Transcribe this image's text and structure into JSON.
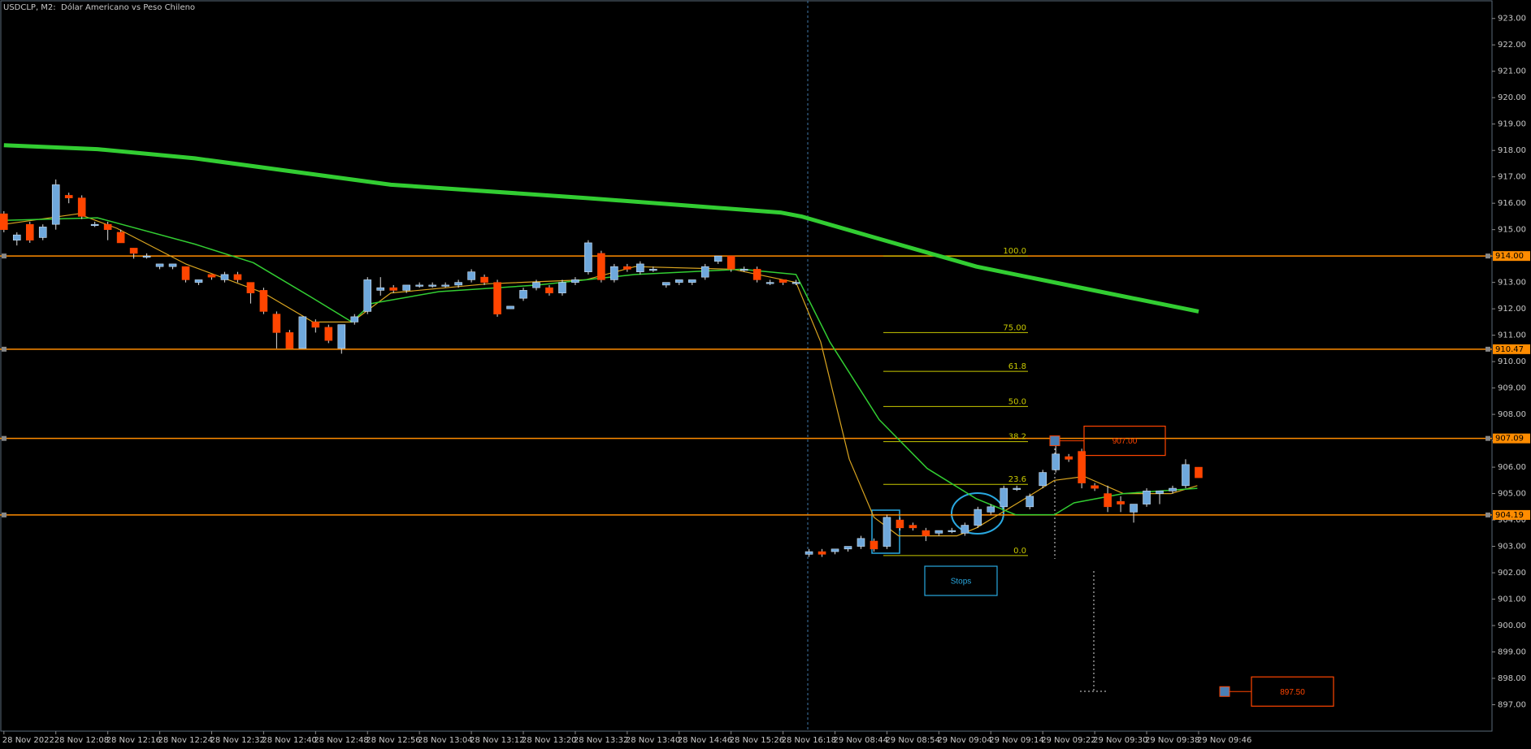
{
  "chart_data": {
    "type": "candlestick",
    "title": "USDCLP, M2:  Dólar Americano vs Peso Chileno",
    "up_color": "#6fa8dc",
    "down_color": "#ff4500",
    "wick_color": "#e0e0e0",
    "categories": [
      "28 Nov 2022",
      null,
      null,
      null,
      "28 Nov 12:08",
      null,
      null,
      null,
      "28 Nov 12:16",
      null,
      null,
      null,
      "28 Nov 12:24",
      null,
      null,
      null,
      "28 Nov 12:32",
      null,
      null,
      null,
      "28 Nov 12:40",
      null,
      null,
      null,
      "28 Nov 12:48",
      null,
      null,
      null,
      "28 Nov 12:56",
      null,
      null,
      null,
      "28 Nov 13:04",
      null,
      null,
      null,
      "28 Nov 13:12",
      null,
      null,
      null,
      "28 Nov 13:20",
      null,
      null,
      null,
      "28 Nov 13:32",
      null,
      null,
      null,
      "28 Nov 13:40",
      null,
      null,
      null,
      "28 Nov 14:46",
      null,
      null,
      null,
      "28 Nov 15:26",
      null,
      null,
      null,
      "28 Nov 16:18",
      null,
      null,
      null,
      "29 Nov 08:44",
      null,
      null,
      null,
      "29 Nov 08:54",
      null,
      null,
      null,
      "29 Nov 09:04",
      null,
      null,
      null,
      "29 Nov 09:14",
      null,
      null,
      null,
      "29 Nov 09:22",
      null,
      null,
      null,
      "29 Nov 09:30",
      null,
      null,
      null,
      "29 Nov 09:38",
      null,
      null,
      null,
      "29 Nov 09:46"
    ],
    "open": [
      915.6,
      914.6,
      915.2,
      914.7,
      915.2,
      916.3,
      916.2,
      915.2,
      915.2,
      914.9,
      914.3,
      914.0,
      913.6,
      913.6,
      913.6,
      913.0,
      913.3,
      913.1,
      913.3,
      913.0,
      912.7,
      911.8,
      911.1,
      910.5,
      911.5,
      911.3,
      910.5,
      911.5,
      911.9,
      912.7,
      912.8,
      912.7,
      912.9,
      912.9,
      912.9,
      912.9,
      913.1,
      913.2,
      913.0,
      912.0,
      912.4,
      912.8,
      912.8,
      912.6,
      913.0,
      913.4,
      914.1,
      913.1,
      913.6,
      913.4,
      913.5,
      912.9,
      913.0,
      913.0,
      913.2,
      913.8,
      914.0,
      913.5,
      913.5,
      913.0,
      913.1,
      913.0,
      902.7,
      902.8,
      902.8,
      902.9,
      903.0,
      903.2,
      903.0,
      904.0,
      903.8,
      903.6,
      903.5,
      903.6,
      903.5,
      903.8,
      904.3,
      904.5,
      905.2,
      904.5,
      905.3,
      905.9,
      906.4,
      906.6,
      905.3,
      905.0,
      904.7,
      904.3,
      904.6,
      905.0,
      905.1,
      905.3,
      906.0
    ],
    "high": [
      915.7,
      914.9,
      915.3,
      915.2,
      916.9,
      916.4,
      916.3,
      915.3,
      915.3,
      915.0,
      914.3,
      914.1,
      913.7,
      913.7,
      913.6,
      913.1,
      913.3,
      913.4,
      913.4,
      913.0,
      912.8,
      911.9,
      911.2,
      911.7,
      911.6,
      911.4,
      911.4,
      911.8,
      913.2,
      913.2,
      912.9,
      912.9,
      913.0,
      913.0,
      913.0,
      913.1,
      913.5,
      913.3,
      913.1,
      912.1,
      912.8,
      913.1,
      912.9,
      913.1,
      913.2,
      914.6,
      914.2,
      913.7,
      913.7,
      913.8,
      913.6,
      913.0,
      913.1,
      913.1,
      913.7,
      914.0,
      914.0,
      913.6,
      913.6,
      913.1,
      913.1,
      913.1,
      902.9,
      902.9,
      902.9,
      903.0,
      903.4,
      903.3,
      904.2,
      904.1,
      903.9,
      903.7,
      903.6,
      903.7,
      903.9,
      904.5,
      904.6,
      905.3,
      905.3,
      905.0,
      905.9,
      906.9,
      906.5,
      906.7,
      905.4,
      905.3,
      904.9,
      904.6,
      905.2,
      905.1,
      905.3,
      906.3,
      906.0
    ],
    "low": [
      914.9,
      914.4,
      914.5,
      914.6,
      915.0,
      916.0,
      915.4,
      915.1,
      914.6,
      914.5,
      913.9,
      913.9,
      913.5,
      913.5,
      913.0,
      912.9,
      913.1,
      913.0,
      913.0,
      912.2,
      911.8,
      910.5,
      910.5,
      910.5,
      911.1,
      910.7,
      910.3,
      911.4,
      911.8,
      912.5,
      912.6,
      912.6,
      912.8,
      912.8,
      912.8,
      912.8,
      913.0,
      912.9,
      911.7,
      912.0,
      912.3,
      912.7,
      912.5,
      912.5,
      912.9,
      913.3,
      913.0,
      913.0,
      913.4,
      913.3,
      913.4,
      912.8,
      912.9,
      912.9,
      913.1,
      913.7,
      913.4,
      913.4,
      913.0,
      912.9,
      912.9,
      912.9,
      902.6,
      902.6,
      902.7,
      902.8,
      902.9,
      902.8,
      902.9,
      903.6,
      903.6,
      903.2,
      903.4,
      903.5,
      903.4,
      903.7,
      904.2,
      904.4,
      905.1,
      904.4,
      905.2,
      905.8,
      906.2,
      905.2,
      905.1,
      904.3,
      904.3,
      903.9,
      904.5,
      904.6,
      905.0,
      905.2,
      905.6
    ],
    "close": [
      915.0,
      914.8,
      914.6,
      915.1,
      916.7,
      916.2,
      915.5,
      915.2,
      915.0,
      914.5,
      914.1,
      914.0,
      913.7,
      913.7,
      913.1,
      913.1,
      913.2,
      913.3,
      913.1,
      912.6,
      911.9,
      911.1,
      910.5,
      911.7,
      911.3,
      910.8,
      911.4,
      911.7,
      913.1,
      912.8,
      912.7,
      912.9,
      912.9,
      912.9,
      912.9,
      913.0,
      913.4,
      913.0,
      911.8,
      912.1,
      912.7,
      913.0,
      912.6,
      913.0,
      913.1,
      914.5,
      913.1,
      913.6,
      913.5,
      913.7,
      913.5,
      913.0,
      913.1,
      913.1,
      913.6,
      914.0,
      913.5,
      913.5,
      913.1,
      913.0,
      913.0,
      913.0,
      902.8,
      902.7,
      902.9,
      903.0,
      903.3,
      902.9,
      904.1,
      903.7,
      903.7,
      903.4,
      903.6,
      903.6,
      903.8,
      904.4,
      904.5,
      905.2,
      905.2,
      904.9,
      905.8,
      906.5,
      906.3,
      905.4,
      905.2,
      904.5,
      904.6,
      904.6,
      905.1,
      905.1,
      905.2,
      906.1,
      905.6
    ],
    "ylim": [
      896.0,
      923.7
    ],
    "yticks": [
      {
        "value": 897,
        "label": "897.00"
      },
      {
        "value": 898,
        "label": "898.00"
      },
      {
        "value": 899,
        "label": "899.00"
      },
      {
        "value": 900,
        "label": "900.00"
      },
      {
        "value": 901,
        "label": "901.00"
      },
      {
        "value": 902,
        "label": "902.00"
      },
      {
        "value": 903,
        "label": "903.00"
      },
      {
        "value": 904,
        "label": "904.00"
      },
      {
        "value": 905,
        "label": "905.00"
      },
      {
        "value": 906,
        "label": "906.00"
      },
      {
        "value": 907,
        "label": "907.00"
      },
      {
        "value": 908,
        "label": "908.00"
      },
      {
        "value": 909,
        "label": "909.00"
      },
      {
        "value": 910,
        "label": "910.00"
      },
      {
        "value": 911,
        "label": "911.00"
      },
      {
        "value": 912,
        "label": "912.00"
      },
      {
        "value": 913,
        "label": "913.00"
      },
      {
        "value": 914,
        "label": "914.00"
      },
      {
        "value": 915,
        "label": "915.00"
      },
      {
        "value": 916,
        "label": "916.00"
      },
      {
        "value": 917,
        "label": "917.00"
      },
      {
        "value": 918,
        "label": "918.00"
      },
      {
        "value": 919,
        "label": "919.00"
      },
      {
        "value": 920,
        "label": "920.00"
      },
      {
        "value": 921,
        "label": "921.00"
      },
      {
        "value": 922,
        "label": "922.00"
      },
      {
        "value": 923,
        "label": "923.00"
      }
    ],
    "lines": [
      {
        "color": "#32cd32",
        "width": 5,
        "x": [
          0,
          7.2,
          14.7,
          29.8,
          44.8,
          59.8,
          61.4,
          67.4,
          74.9,
          82.4,
          92
        ],
        "values": [
          918.2,
          918.05,
          917.7,
          916.7,
          916.2,
          915.65,
          915.5,
          914.65,
          913.6,
          912.85,
          911.9
        ]
      },
      {
        "color": "#daa520",
        "width": 1.2,
        "x": [
          0,
          5.7,
          8.7,
          14.0,
          20.0,
          23.8,
          26.8,
          29.8,
          37.3,
          44.8,
          48.6,
          56.1,
          61.0,
          62.9,
          65.1,
          67.0,
          68.9,
          73.4,
          74.9,
          78.6,
          80.9,
          83.2,
          86.2,
          89.9,
          91.9
        ],
        "values": [
          915.2,
          915.6,
          915.05,
          913.7,
          912.6,
          911.5,
          911.5,
          912.6,
          912.95,
          913.1,
          913.6,
          913.5,
          913.0,
          910.75,
          906.3,
          904.1,
          903.4,
          903.4,
          903.7,
          904.8,
          905.5,
          905.65,
          905.0,
          905.0,
          905.3
        ]
      },
      {
        "color": "#32cd32",
        "width": 1.5,
        "x": [
          0,
          7.2,
          14.7,
          19.2,
          23.8,
          26.8,
          28.3,
          33.5,
          41.1,
          48.6,
          56.8,
          61.0,
          63.6,
          67.4,
          71.1,
          74.9,
          77.9,
          80.9,
          82.4,
          86.2,
          91.9
        ],
        "values": [
          915.35,
          915.45,
          914.45,
          913.75,
          912.4,
          911.5,
          912.2,
          912.65,
          912.9,
          913.3,
          913.5,
          913.3,
          910.75,
          907.8,
          905.95,
          904.8,
          904.2,
          904.2,
          904.65,
          905.0,
          905.2
        ]
      }
    ],
    "levels": [
      {
        "value": 914.0,
        "label": "914.00",
        "color": "#ff8c00"
      },
      {
        "value": 910.47,
        "label": "910.47",
        "color": "#ff8c00"
      },
      {
        "value": 907.09,
        "label": "907.09",
        "color": "#ff8c00"
      },
      {
        "value": 904.19,
        "label": "904.19",
        "color": "#ff8c00"
      }
    ],
    "fibonacci": {
      "color": "#c8c800",
      "levels": [
        {
          "value": 914.0,
          "label": "100.0"
        },
        {
          "value": 911.1,
          "label": "75.00"
        },
        {
          "value": 909.63,
          "label": "61.8"
        },
        {
          "value": 908.3,
          "label": "50.0"
        },
        {
          "value": 906.97,
          "label": "38.2"
        },
        {
          "value": 905.35,
          "label": "23.6"
        },
        {
          "value": 902.65,
          "label": "0.0"
        }
      ]
    },
    "annotations": [
      {
        "text": "907.00",
        "value": 907.0,
        "color": "#ff4500"
      },
      {
        "text": "897.50",
        "value": 897.5,
        "color": "#ff4500"
      },
      {
        "text": "Stops",
        "color": "#29a8e0"
      }
    ]
  }
}
